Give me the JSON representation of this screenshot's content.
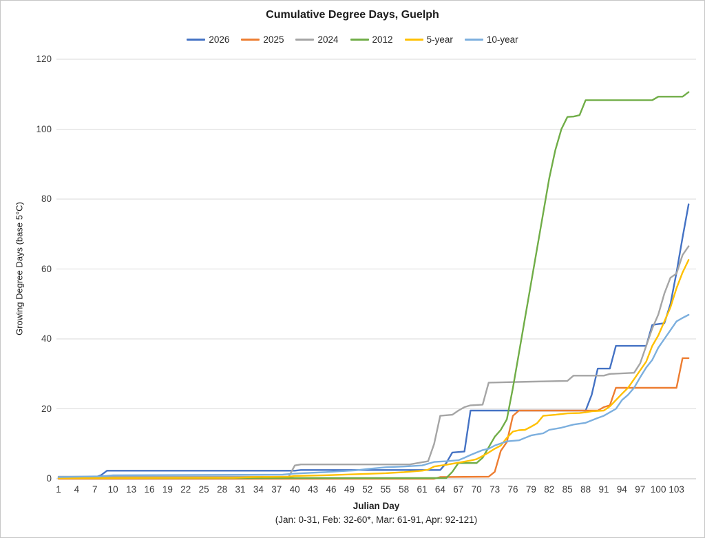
{
  "figure": {
    "title": "Cumulative Degree Days, Guelph",
    "x_axis_title": "Julian Day",
    "x_axis_note": "(Jan: 0-31, Feb: 32-60*, Mar: 61-91, Apr: 92-121)",
    "y_axis_title": "Growing Degree Days (base 5°C)"
  },
  "chart_data": {
    "type": "line",
    "title": "Cumulative Degree Days, Guelph",
    "xlabel": "Julian Day",
    "xlabel_note": "(Jan: 0-31, Feb: 32-60*, Mar: 61-91, Apr: 92-121)",
    "ylabel": "Growing Degree Days (base 5°C)",
    "xlim": [
      1,
      106
    ],
    "ylim": [
      0,
      120
    ],
    "grid": "horizontal-only",
    "legend_position": "top-center",
    "grid_color": "#d9d9d9",
    "axis_line_color": "#bfbfbf",
    "y_ticks": [
      0,
      20,
      40,
      60,
      80,
      100,
      120
    ],
    "x_ticks": [
      1,
      4,
      7,
      10,
      13,
      16,
      19,
      22,
      25,
      28,
      31,
      34,
      37,
      40,
      43,
      46,
      49,
      52,
      55,
      58,
      61,
      64,
      67,
      70,
      73,
      76,
      79,
      82,
      85,
      88,
      91,
      94,
      97,
      100,
      103
    ],
    "series": [
      {
        "name": "2026",
        "color": "#4472C4",
        "points": [
          [
            1,
            0.4
          ],
          [
            7,
            0.4
          ],
          [
            8,
            1.0
          ],
          [
            9,
            2.3
          ],
          [
            40,
            2.3
          ],
          [
            41,
            2.5
          ],
          [
            64,
            2.5
          ],
          [
            65,
            4.5
          ],
          [
            66,
            7.5
          ],
          [
            68,
            7.8
          ],
          [
            69,
            19.5
          ],
          [
            88,
            19.5
          ],
          [
            89,
            24.0
          ],
          [
            90,
            31.5
          ],
          [
            92,
            31.5
          ],
          [
            93,
            38.0
          ],
          [
            98,
            38.0
          ],
          [
            99,
            44.0
          ],
          [
            101,
            44.5
          ],
          [
            102,
            50.0
          ],
          [
            103,
            59.0
          ],
          [
            104,
            69.0
          ],
          [
            105,
            78.5
          ]
        ]
      },
      {
        "name": "2025",
        "color": "#ED7D31",
        "points": [
          [
            1,
            0.0
          ],
          [
            63,
            0.0
          ],
          [
            64,
            0.5
          ],
          [
            72,
            0.6
          ],
          [
            73,
            2.0
          ],
          [
            74,
            8.0
          ],
          [
            75,
            10.5
          ],
          [
            76,
            18.0
          ],
          [
            77,
            19.5
          ],
          [
            90,
            19.5
          ],
          [
            91,
            20.5
          ],
          [
            92,
            21.0
          ],
          [
            93,
            26.0
          ],
          [
            103,
            26.0
          ],
          [
            104,
            34.5
          ],
          [
            105,
            34.5
          ]
        ]
      },
      {
        "name": "2024",
        "color": "#A5A5A5",
        "points": [
          [
            1,
            0.6
          ],
          [
            39,
            0.6
          ],
          [
            40,
            3.8
          ],
          [
            41,
            4.1
          ],
          [
            59,
            4.1
          ],
          [
            61,
            4.7
          ],
          [
            62,
            5.0
          ],
          [
            63,
            10.0
          ],
          [
            64,
            18.0
          ],
          [
            66,
            18.3
          ],
          [
            67,
            19.5
          ],
          [
            68,
            20.5
          ],
          [
            69,
            21.0
          ],
          [
            71,
            21.2
          ],
          [
            72,
            27.5
          ],
          [
            85,
            28.0
          ],
          [
            86,
            29.5
          ],
          [
            91,
            29.5
          ],
          [
            92,
            30.0
          ],
          [
            96,
            30.3
          ],
          [
            97,
            33.0
          ],
          [
            98,
            38.0
          ],
          [
            99,
            43.0
          ],
          [
            100,
            47.0
          ],
          [
            101,
            53.0
          ],
          [
            102,
            57.5
          ],
          [
            103,
            58.7
          ],
          [
            104,
            64.0
          ],
          [
            105,
            66.5
          ]
        ]
      },
      {
        "name": "2012",
        "color": "#70AD47",
        "points": [
          [
            1,
            0.2
          ],
          [
            65,
            0.2
          ],
          [
            66,
            2.0
          ],
          [
            67,
            4.5
          ],
          [
            70,
            4.5
          ],
          [
            71,
            6.0
          ],
          [
            72,
            9.0
          ],
          [
            73,
            12.0
          ],
          [
            74,
            14.0
          ],
          [
            75,
            17.0
          ],
          [
            76,
            26.0
          ],
          [
            77,
            36.0
          ],
          [
            78,
            46.0
          ],
          [
            79,
            56.0
          ],
          [
            80,
            66.0
          ],
          [
            81,
            76.0
          ],
          [
            82,
            86.0
          ],
          [
            83,
            94.0
          ],
          [
            84,
            100.0
          ],
          [
            85,
            103.5
          ],
          [
            86,
            103.6
          ],
          [
            87,
            104.0
          ],
          [
            88,
            108.3
          ],
          [
            99,
            108.3
          ],
          [
            100,
            109.3
          ],
          [
            104,
            109.3
          ],
          [
            105,
            110.6
          ]
        ]
      },
      {
        "name": "5-year",
        "color": "#FFC000",
        "points": [
          [
            1,
            0.2
          ],
          [
            30,
            0.3
          ],
          [
            33,
            0.5
          ],
          [
            39,
            0.6
          ],
          [
            40,
            0.8
          ],
          [
            45,
            1.0
          ],
          [
            50,
            1.3
          ],
          [
            55,
            1.6
          ],
          [
            58,
            1.9
          ],
          [
            61,
            2.3
          ],
          [
            62,
            2.6
          ],
          [
            63,
            3.5
          ],
          [
            65,
            4.0
          ],
          [
            67,
            4.6
          ],
          [
            69,
            5.2
          ],
          [
            70,
            5.6
          ],
          [
            71,
            6.5
          ],
          [
            72,
            7.5
          ],
          [
            73,
            8.6
          ],
          [
            74,
            9.5
          ],
          [
            75,
            11.7
          ],
          [
            76,
            13.5
          ],
          [
            77,
            13.9
          ],
          [
            78,
            14.0
          ],
          [
            79,
            14.9
          ],
          [
            80,
            15.9
          ],
          [
            81,
            18.0
          ],
          [
            83,
            18.3
          ],
          [
            85,
            18.7
          ],
          [
            87,
            18.8
          ],
          [
            88,
            19.0
          ],
          [
            89,
            19.3
          ],
          [
            91,
            19.5
          ],
          [
            92,
            20.7
          ],
          [
            93,
            22.5
          ],
          [
            94,
            24.3
          ],
          [
            95,
            26.0
          ],
          [
            96,
            28.5
          ],
          [
            97,
            31.0
          ],
          [
            98,
            33.5
          ],
          [
            99,
            38.0
          ],
          [
            100,
            41.0
          ],
          [
            101,
            45.0
          ],
          [
            102,
            49.0
          ],
          [
            103,
            54.5
          ],
          [
            104,
            59.0
          ],
          [
            105,
            62.6
          ]
        ]
      },
      {
        "name": "10-year",
        "color": "#7CAFDE",
        "points": [
          [
            1,
            0.5
          ],
          [
            8,
            0.7
          ],
          [
            10,
            1.0
          ],
          [
            38,
            1.2
          ],
          [
            40,
            1.5
          ],
          [
            45,
            1.9
          ],
          [
            50,
            2.4
          ],
          [
            52,
            2.8
          ],
          [
            55,
            3.3
          ],
          [
            58,
            3.5
          ],
          [
            61,
            3.8
          ],
          [
            63,
            4.8
          ],
          [
            65,
            5.0
          ],
          [
            67,
            5.3
          ],
          [
            68,
            6.0
          ],
          [
            69,
            6.8
          ],
          [
            70,
            7.5
          ],
          [
            71,
            8.2
          ],
          [
            72,
            8.6
          ],
          [
            73,
            9.5
          ],
          [
            74,
            10.1
          ],
          [
            75,
            10.7
          ],
          [
            77,
            11.0
          ],
          [
            79,
            12.4
          ],
          [
            81,
            13.0
          ],
          [
            82,
            14.0
          ],
          [
            84,
            14.6
          ],
          [
            86,
            15.5
          ],
          [
            88,
            16.0
          ],
          [
            90,
            17.4
          ],
          [
            91,
            18.0
          ],
          [
            92,
            19.0
          ],
          [
            93,
            20.0
          ],
          [
            94,
            22.5
          ],
          [
            95,
            24.0
          ],
          [
            96,
            26.0
          ],
          [
            97,
            29.0
          ],
          [
            98,
            31.8
          ],
          [
            99,
            34.0
          ],
          [
            100,
            37.5
          ],
          [
            101,
            40.0
          ],
          [
            102,
            42.5
          ],
          [
            103,
            45.0
          ],
          [
            104,
            46.0
          ],
          [
            105,
            46.9
          ]
        ]
      }
    ]
  }
}
